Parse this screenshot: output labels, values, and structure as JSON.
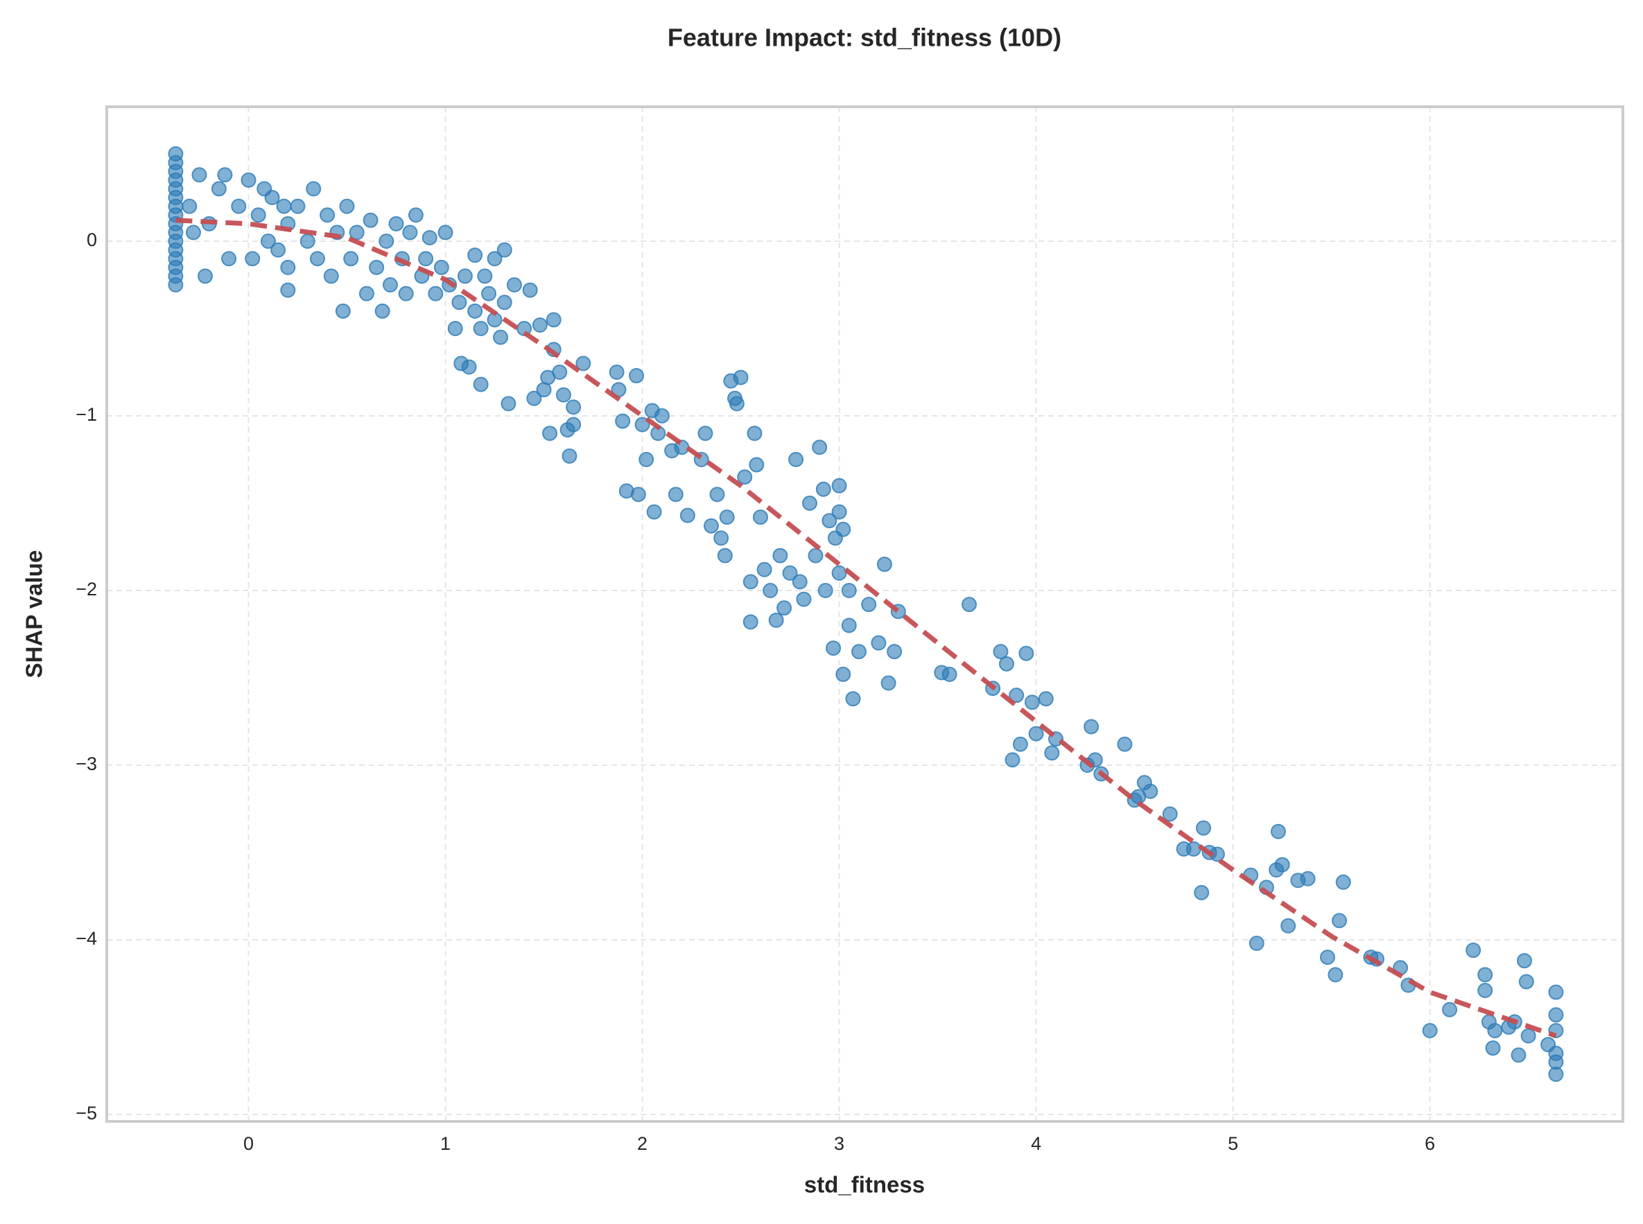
{
  "chart_data": {
    "type": "scatter",
    "title": "Feature Impact: std_fitness (10D)",
    "x_label": "std_fitness",
    "y_label": "SHAP value",
    "xlim": [
      -0.72,
      6.98
    ],
    "ylim": [
      -5.04,
      0.77
    ],
    "xticks": [
      0,
      1,
      2,
      3,
      4,
      5,
      6
    ],
    "yticks": [
      0,
      {
        "value": -1,
        "label": "−1"
      },
      {
        "value": -2,
        "label": "−2"
      },
      {
        "value": -3,
        "label": "−3"
      },
      {
        "value": -4,
        "label": "−4"
      },
      {
        "value": -5,
        "label": "−5"
      }
    ],
    "grid": true,
    "series": [
      {
        "type": "scatter",
        "color": "#2c7bb6",
        "x": [
          -0.37,
          -0.37,
          -0.37,
          -0.37,
          -0.37,
          -0.37,
          -0.37,
          -0.37,
          -0.37,
          -0.37,
          -0.37,
          -0.37,
          -0.37,
          -0.37,
          -0.37,
          -0.37,
          -0.3,
          -0.28,
          -0.25,
          -0.22,
          -0.2,
          -0.15,
          -0.12,
          -0.1,
          -0.05,
          0,
          0.02,
          0.05,
          0.08,
          0.1,
          0.12,
          0.15,
          0.18,
          0.2,
          0.2,
          0.2,
          0.25,
          0.3,
          0.33,
          0.35,
          0.4,
          0.42,
          0.45,
          0.48,
          0.5,
          0.52,
          0.55,
          0.6,
          0.62,
          0.65,
          0.68,
          0.7,
          0.72,
          0.75,
          0.78,
          0.8,
          0.82,
          0.85,
          0.88,
          0.9,
          0.92,
          0.95,
          0.98,
          1.0,
          1.02,
          1.05,
          1.07,
          1.08,
          1.1,
          1.12,
          1.15,
          1.15,
          1.18,
          1.18,
          1.2,
          1.22,
          1.25,
          1.25,
          1.28,
          1.3,
          1.3,
          1.32,
          1.35,
          1.4,
          1.43,
          1.45,
          1.48,
          1.5,
          1.52,
          1.53,
          1.55,
          1.55,
          1.58,
          1.6,
          1.62,
          1.63,
          1.65,
          1.65,
          1.7,
          1.87,
          1.88,
          1.9,
          1.92,
          1.97,
          1.98,
          2.0,
          2.02,
          2.05,
          2.06,
          2.08,
          2.1,
          2.15,
          2.17,
          2.2,
          2.23,
          2.3,
          2.32,
          2.35,
          2.38,
          2.4,
          2.42,
          2.43,
          2.45,
          2.47,
          2.48,
          2.5,
          2.52,
          2.55,
          2.55,
          2.57,
          2.58,
          2.6,
          2.62,
          2.65,
          2.68,
          2.7,
          2.72,
          2.75,
          2.78,
          2.8,
          2.82,
          2.85,
          2.88,
          2.9,
          2.92,
          2.93,
          2.95,
          2.97,
          2.98,
          3.0,
          3.0,
          3.0,
          3.02,
          3.02,
          3.05,
          3.05,
          3.07,
          3.1,
          3.15,
          3.2,
          3.23,
          3.25,
          3.28,
          3.3,
          3.52,
          3.56,
          3.66,
          3.78,
          3.82,
          3.85,
          3.88,
          3.9,
          3.92,
          3.95,
          3.98,
          4.0,
          4.05,
          4.08,
          4.1,
          4.26,
          4.28,
          4.3,
          4.33,
          4.45,
          4.5,
          4.52,
          4.55,
          4.58,
          4.68,
          4.75,
          4.8,
          4.84,
          4.85,
          4.88,
          4.92,
          5.09,
          5.12,
          5.17,
          5.22,
          5.23,
          5.25,
          5.28,
          5.33,
          5.38,
          5.48,
          5.52,
          5.54,
          5.56,
          5.7,
          5.73,
          5.85,
          5.89,
          6.0,
          6.1,
          6.22,
          6.28,
          6.28,
          6.3,
          6.32,
          6.33,
          6.4,
          6.43,
          6.45,
          6.48,
          6.49,
          6.5,
          6.6,
          6.64,
          6.64,
          6.64,
          6.64,
          6.64,
          6.64
        ],
        "values": [
          0.5,
          0.45,
          0.4,
          0.35,
          0.3,
          0.25,
          0.2,
          0.15,
          0.1,
          0.05,
          0,
          -0.05,
          -0.1,
          -0.15,
          -0.2,
          -0.25,
          0.2,
          0.05,
          0.38,
          -0.2,
          0.1,
          0.3,
          0.38,
          -0.1,
          0.2,
          0.35,
          -0.1,
          0.15,
          0.3,
          0,
          0.25,
          -0.05,
          0.2,
          0.1,
          -0.15,
          -0.28,
          0.2,
          0,
          0.3,
          -0.1,
          0.15,
          -0.2,
          0.05,
          -0.4,
          0.2,
          -0.1,
          0.05,
          -0.3,
          0.12,
          -0.15,
          -0.4,
          0,
          -0.25,
          0.1,
          -0.1,
          -0.3,
          0.05,
          0.15,
          -0.2,
          -0.1,
          0.02,
          -0.3,
          -0.15,
          0.05,
          -0.25,
          -0.5,
          -0.35,
          -0.7,
          -0.2,
          -0.72,
          -0.08,
          -0.4,
          -0.5,
          -0.82,
          -0.2,
          -0.3,
          -0.45,
          -0.1,
          -0.55,
          -0.05,
          -0.35,
          -0.93,
          -0.25,
          -0.5,
          -0.28,
          -0.9,
          -0.48,
          -0.85,
          -0.78,
          -1.1,
          -0.45,
          -0.62,
          -0.75,
          -0.88,
          -1.08,
          -1.23,
          -0.95,
          -1.05,
          -0.7,
          -0.75,
          -0.85,
          -1.03,
          -1.43,
          -0.77,
          -1.45,
          -1.05,
          -1.25,
          -0.97,
          -1.55,
          -1.1,
          -1,
          -1.2,
          -1.45,
          -1.18,
          -1.57,
          -1.25,
          -1.1,
          -1.63,
          -1.45,
          -1.7,
          -1.8,
          -1.58,
          -0.8,
          -0.9,
          -0.93,
          -0.78,
          -1.35,
          -1.95,
          -2.18,
          -1.1,
          -1.28,
          -1.58,
          -1.88,
          -2,
          -2.17,
          -1.8,
          -2.1,
          -1.9,
          -1.25,
          -1.95,
          -2.05,
          -1.5,
          -1.8,
          -1.18,
          -1.42,
          -2,
          -1.6,
          -2.33,
          -1.7,
          -1.4,
          -1.55,
          -1.9,
          -1.65,
          -2.48,
          -2,
          -2.2,
          -2.62,
          -2.35,
          -2.08,
          -2.3,
          -1.85,
          -2.53,
          -2.35,
          -2.12,
          -2.47,
          -2.48,
          -2.08,
          -2.56,
          -2.35,
          -2.42,
          -2.97,
          -2.6,
          -2.88,
          -2.36,
          -2.64,
          -2.82,
          -2.62,
          -2.93,
          -2.85,
          -3,
          -2.78,
          -2.97,
          -3.05,
          -2.88,
          -3.2,
          -3.18,
          -3.1,
          -3.15,
          -3.28,
          -3.48,
          -3.48,
          -3.73,
          -3.36,
          -3.5,
          -3.51,
          -3.63,
          -4.02,
          -3.7,
          -3.6,
          -3.38,
          -3.57,
          -3.92,
          -3.66,
          -3.65,
          -4.1,
          -4.2,
          -3.89,
          -3.67,
          -4.1,
          -4.11,
          -4.16,
          -4.26,
          -4.52,
          -4.4,
          -4.06,
          -4.2,
          -4.29,
          -4.47,
          -4.62,
          -4.52,
          -4.5,
          -4.47,
          -4.66,
          -4.12,
          -4.24,
          -4.55,
          -4.6,
          -4.3,
          -4.43,
          -4.52,
          -4.65,
          -4.7,
          -4.77
        ]
      },
      {
        "type": "line",
        "color": "#c44e52",
        "x": [
          -0.37,
          0,
          0.5,
          1,
          1.5,
          2,
          2.5,
          3,
          3.5,
          4,
          4.5,
          5,
          5.5,
          6,
          6.64
        ],
        "values": [
          0.12,
          0.1,
          0.02,
          -0.22,
          -0.6,
          -1,
          -1.4,
          -1.85,
          -2.3,
          -2.75,
          -3.2,
          -3.6,
          -3.98,
          -4.3,
          -4.55
        ]
      }
    ]
  }
}
